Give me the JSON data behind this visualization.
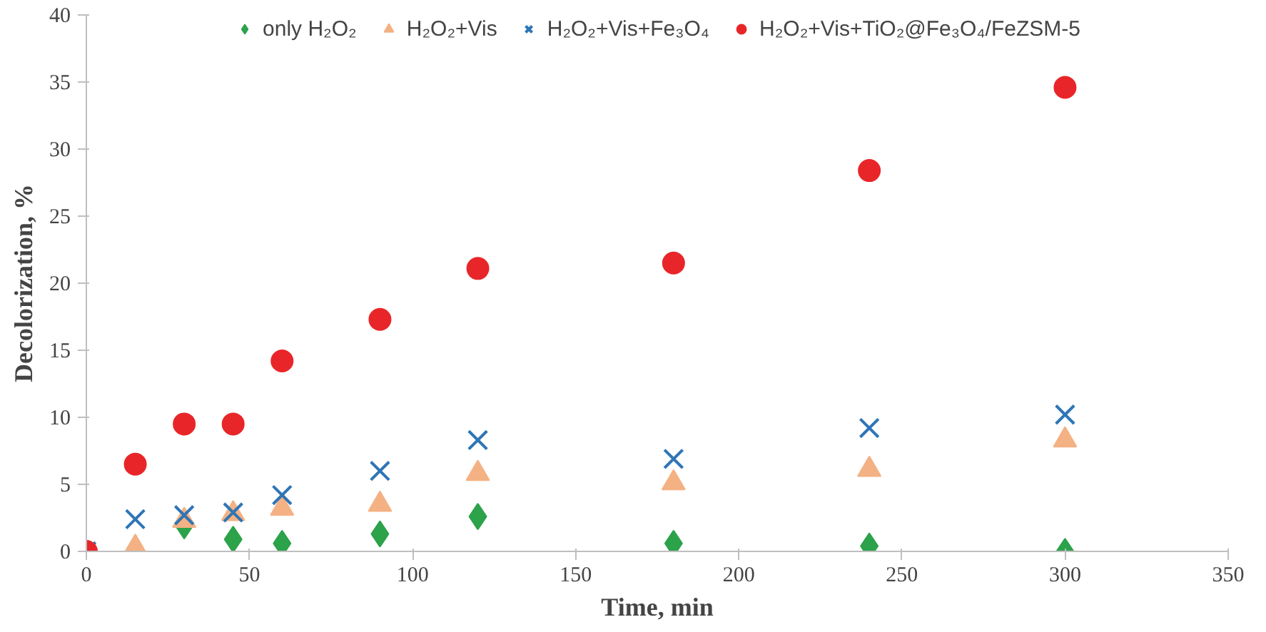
{
  "chart_data": {
    "type": "scatter",
    "xlabel": "Time, min",
    "ylabel": "Decolorization, %",
    "x": [
      0,
      15,
      30,
      45,
      60,
      90,
      120,
      180,
      240,
      300
    ],
    "xlim": [
      0,
      350
    ],
    "xticks": [
      0,
      50,
      100,
      150,
      200,
      250,
      300,
      350
    ],
    "ylim": [
      0,
      40
    ],
    "yticks": [
      0,
      5,
      10,
      15,
      20,
      25,
      30,
      35,
      40
    ],
    "grid": false,
    "legend": "top",
    "series": [
      {
        "name": "only H₂O₂",
        "color": "#2ca24a",
        "marker": "diamond",
        "values": [
          null,
          null,
          1.9,
          0.9,
          0.6,
          1.3,
          2.6,
          0.6,
          0.4,
          0
        ]
      },
      {
        "name": "H₂O₂+Vis",
        "color": "#f4b183",
        "marker": "triangle",
        "values": [
          null,
          0.3,
          2.3,
          2.8,
          3.2,
          3.5,
          5.8,
          5.1,
          6.1,
          8.3
        ]
      },
      {
        "name": "H₂O₂+Vis+Fe₃O₄",
        "color": "#2e75b6",
        "marker": "cross",
        "values": [
          0,
          2.4,
          2.7,
          2.9,
          4.2,
          6.0,
          8.3,
          6.9,
          9.2,
          10.2
        ]
      },
      {
        "name": "H₂O₂+Vis+TiO₂@Fe₃O₄/FeZSM-5",
        "color": "#e8262a",
        "marker": "circle",
        "values": [
          0,
          6.5,
          9.5,
          9.5,
          14.2,
          17.3,
          21.1,
          21.5,
          28.4,
          34.6
        ]
      }
    ]
  }
}
